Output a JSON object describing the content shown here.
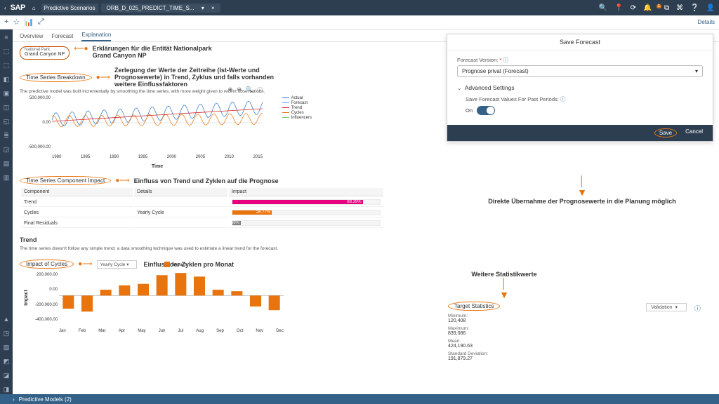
{
  "brand": "SAP",
  "breadcrumb": {
    "home": "⌂",
    "module": "Predictive Scenarios",
    "file": "ORB_D_025_PREDICT_TIME_S...",
    "close": "×"
  },
  "toolrow": {
    "plus": "+",
    "bookmark": "☆",
    "chart": "📊",
    "expand": "⤢",
    "details": "Details"
  },
  "topicons": [
    "🔍",
    "📍",
    "⟳",
    "🔔",
    "⧉",
    "⌘",
    "❔",
    "👤"
  ],
  "leftnav_icons": [
    "≡",
    "⬚",
    "⬚",
    "◧",
    "▣",
    "◫",
    "◱",
    "≣",
    "◲",
    "▤",
    "▥"
  ],
  "leftnav_bottom": [
    "▲",
    "◳",
    "▧",
    "◩",
    "◪",
    "◨"
  ],
  "footer": "Predictive Models (2)",
  "tabs": [
    "Overview",
    "Forecast",
    "Explanation"
  ],
  "entity": {
    "label": "National Park:",
    "value": "Grand Canyon NP"
  },
  "annot": {
    "entity": "Erklärungen für die Entität Nationalpark",
    "entity2": "Grand Canyon NP",
    "breakdown_title": "Time Series Breakdown",
    "breakdown": "Zerlegung der Werte der Zeitreihe (Ist-Werte und Prognosewerte) in Trend, Zyklus und falls vorhanden weitere Einflussfaktoren",
    "impact_title": "Time Series Component Impact",
    "impact": "Einfluss von Trend und Zyklen auf die Prognose",
    "cycles_title": "Impact of Cycles",
    "cycles": "Einfluss der Zyklen pro Monat",
    "save": "Direkte Übernahme der Prognosewerte in die Planung möglich",
    "stats": "Weitere Statistikwerte"
  },
  "breakdown_desc": "The predictive model was built incrementally by smoothing the time series, with more weight given to recent observations.",
  "chart1": {
    "yticks": [
      "500,000.00",
      "0.00",
      "-500,000.00"
    ],
    "xticks": [
      "1980",
      "1985",
      "1990",
      "1995",
      "2000",
      "2005",
      "2010",
      "2015"
    ],
    "xaxis_label": "Time",
    "legend": [
      {
        "label": "Actual",
        "color": "#2776c4"
      },
      {
        "label": "Forecast",
        "color": "#66aafd"
      },
      {
        "label": "Trend",
        "color": "#d62728"
      },
      {
        "label": "Cycles",
        "color": "#e9730c"
      },
      {
        "label": "Influencers",
        "color": "#7fc97f"
      }
    ],
    "trend_color": "#d62728",
    "cycles_color": "#e9730c",
    "actual_color": "#2776c4",
    "toolbar": [
      "⊕",
      "⊖",
      "🔍",
      "ⓘ"
    ]
  },
  "impact_table": {
    "cols": [
      "Component",
      "Details",
      "Impact"
    ],
    "rows": [
      {
        "component": "Trend",
        "details": "",
        "pct": 88.39,
        "color": "#e6007e",
        "label": "88.39%"
      },
      {
        "component": "Cycles",
        "details": "Yearly Cycle",
        "pct": 26.77,
        "color": "#e9730c",
        "label": "26.77%"
      },
      {
        "component": "Final Residuals",
        "details": "",
        "pct": 5.66,
        "color": "#808080",
        "label": "5.66%"
      }
    ]
  },
  "trend_section": {
    "heading": "Trend",
    "desc": "The time series doesn't follow any simple trend; a data smoothing technique was used to estimate a linear trend for the forecast."
  },
  "cycles_chart": {
    "legend": "Impact",
    "dd": "Yearly Cycle ▾",
    "ylabel": "Impact",
    "yticks": [
      "200,000.00",
      "0.00",
      "-200,000.00",
      "-400,000.00"
    ],
    "months": [
      "Jan",
      "Feb",
      "Mar",
      "Apr",
      "May",
      "Jun",
      "Jul",
      "Aug",
      "Sep",
      "Oct",
      "Nov",
      "Dec"
    ],
    "values": [
      -180000,
      -220000,
      80000,
      140000,
      160000,
      280000,
      310000,
      260000,
      80000,
      60000,
      -150000,
      -200000
    ],
    "ymin": -400000,
    "ymax": 350000,
    "color": "#e9730c"
  },
  "dialog": {
    "title": "Save Forecast",
    "version_label": "Forecast Version:",
    "version_value": "Prognose privat (Forecast)",
    "adv": "Advanced Settings",
    "past_label": "Save Forecast Values For Past Periods:",
    "toggle_state": "On",
    "save": "Save",
    "cancel": "Cancel"
  },
  "target_stats": {
    "title": "Target Statistics",
    "dd": "Validation",
    "items": [
      {
        "k": "Minimum:",
        "v": "120,408"
      },
      {
        "k": "Maximum:",
        "v": "839,086"
      },
      {
        "k": "Mean:",
        "v": "424,190.63"
      },
      {
        "k": "Standard Deviation:",
        "v": "191,879.27"
      }
    ]
  }
}
